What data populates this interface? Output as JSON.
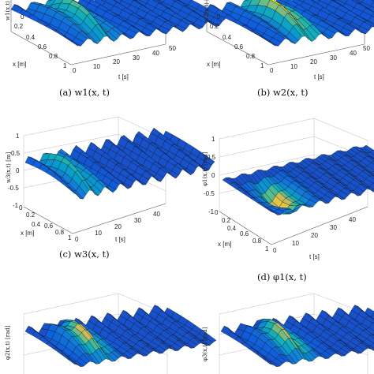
{
  "figure": {
    "panels": [
      {
        "id": "a",
        "caption": "(a)  w1(x, t)",
        "zlabel": "w1(x,t) [m]"
      },
      {
        "id": "b",
        "caption": "(b)  w2(x, t)",
        "zlabel": "w2(x,t) [m]"
      },
      {
        "id": "c",
        "caption": "(c)  w3(x, t)",
        "zlabel": "w3(x,t) [m]"
      },
      {
        "id": "d",
        "caption": "(d)  φ1(x, t)",
        "zlabel": "φ1(x,t) [rad]"
      },
      {
        "id": "e",
        "caption": "",
        "zlabel": "φ2(x,t) [rad]"
      },
      {
        "id": "f",
        "caption": "",
        "zlabel": "φ3(x,t) [rad]"
      }
    ]
  },
  "chart_data": [
    {
      "type": "surface",
      "panel": "a",
      "xlabel": "x [m]",
      "ylabel": "t [s]",
      "zlabel": "w1(x,t) [m]",
      "x_ticks": [
        "0",
        "0.2",
        "0.4",
        "0.6",
        "0.8",
        "1"
      ],
      "t_ticks": [
        "0",
        "10",
        "20",
        "30",
        "40",
        "50"
      ],
      "z_ticks": [
        "0"
      ],
      "t_range": [
        0,
        50
      ],
      "x_range": [
        0,
        1
      ],
      "colormap": "parula"
    },
    {
      "type": "surface",
      "panel": "b",
      "xlabel": "x [m]",
      "ylabel": "t [s]",
      "zlabel": "w2(x,t) [m]",
      "x_ticks": [
        "0",
        "0.2",
        "0.4",
        "0.6",
        "0.8",
        "1"
      ],
      "t_ticks": [
        "0",
        "10",
        "20",
        "30",
        "40",
        "50"
      ],
      "z_ticks": [
        "0"
      ],
      "t_range": [
        0,
        50
      ],
      "x_range": [
        0,
        1
      ],
      "colormap": "parula"
    },
    {
      "type": "surface",
      "panel": "c",
      "xlabel": "x [m]",
      "ylabel": "t [s]",
      "zlabel": "w3(x,t) [m]",
      "x_ticks": [
        "0",
        "0.2",
        "0.4",
        "0.6",
        "0.8",
        "1"
      ],
      "t_ticks": [
        "0",
        "10",
        "20",
        "30",
        "40"
      ],
      "z_ticks": [
        "1",
        "0.5",
        "0",
        "-0.5",
        "-1"
      ],
      "t_range": [
        0,
        50
      ],
      "x_range": [
        0,
        1
      ],
      "z_range": [
        -1,
        1
      ],
      "colormap": "parula"
    },
    {
      "type": "surface",
      "panel": "d",
      "xlabel": "x [m]",
      "ylabel": "t [s]",
      "zlabel": "φ1(x,t) [rad]",
      "x_ticks": [
        "0",
        "0.2",
        "0.4",
        "0.6",
        "0.8",
        "1"
      ],
      "t_ticks": [
        "0",
        "10",
        "20",
        "30",
        "40"
      ],
      "z_ticks": [
        "1",
        "0.5",
        "0",
        "-0.5",
        "-1"
      ],
      "t_range": [
        0,
        50
      ],
      "x_range": [
        0,
        1
      ],
      "z_range": [
        -1,
        1
      ],
      "colormap": "parula"
    },
    {
      "type": "surface",
      "panel": "e",
      "zlabel": "φ2(x,t) [rad]",
      "t_range": [
        0,
        50
      ],
      "x_range": [
        0,
        1
      ],
      "colormap": "parula"
    },
    {
      "type": "surface",
      "panel": "f",
      "zlabel": "φ3(x,t) [rad]",
      "t_range": [
        0,
        50
      ],
      "x_range": [
        0,
        1
      ],
      "colormap": "parula"
    }
  ]
}
